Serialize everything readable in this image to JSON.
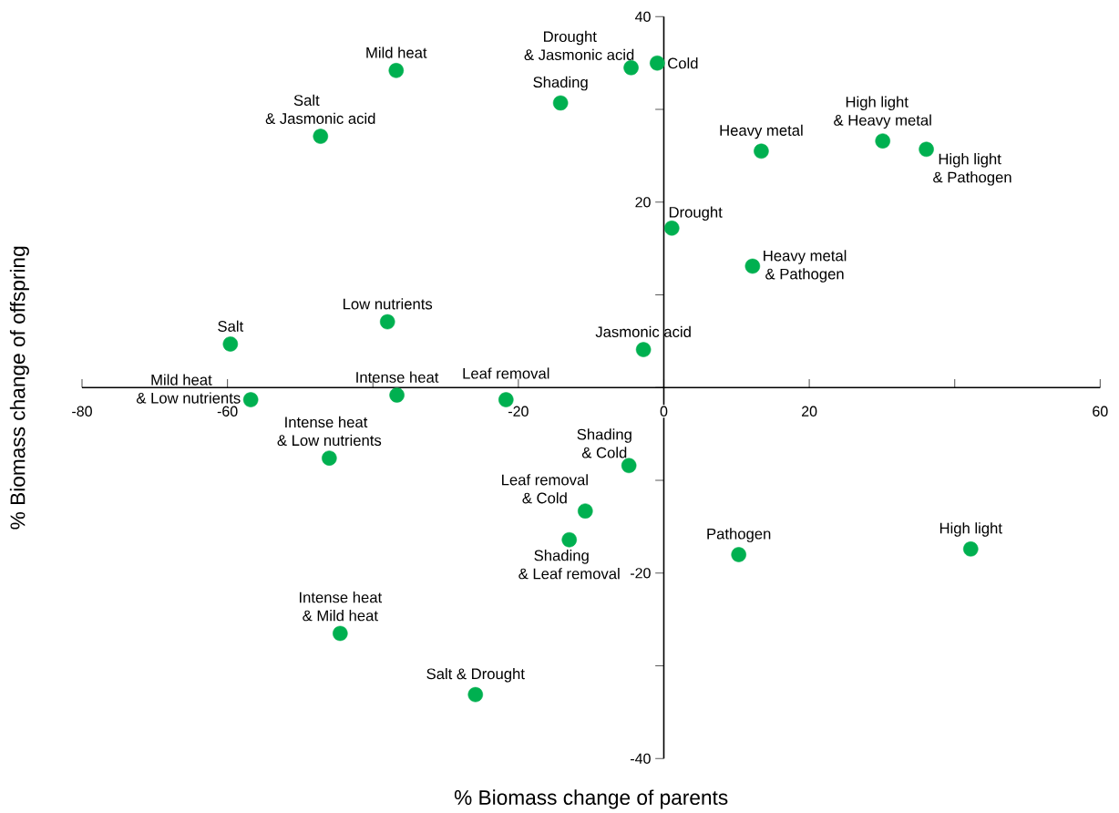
{
  "chart_data": {
    "type": "scatter",
    "xlabel": "% Biomass change of parents",
    "ylabel": "% Biomass change of offspring",
    "x": [
      -36.8,
      -47.2,
      -4.5,
      -0.9,
      -14.2,
      13.4,
      30.1,
      36.1,
      1.1,
      12.2,
      -38.0,
      -59.6,
      -2.8,
      -56.8,
      -36.7,
      -21.7,
      -46.0,
      -4.8,
      -10.8,
      -13.0,
      10.3,
      42.2,
      -44.5,
      -25.9
    ],
    "values": [
      34.2,
      27.1,
      34.5,
      35.0,
      30.7,
      25.5,
      26.6,
      25.7,
      17.2,
      13.1,
      7.1,
      4.7,
      4.1,
      -1.3,
      -0.8,
      -1.3,
      -7.6,
      -8.4,
      -13.3,
      -16.4,
      -18.0,
      -17.4,
      -26.5,
      -33.1
    ],
    "color": "#00b050",
    "marker": "circle",
    "grid": false,
    "xlim": [
      -80,
      60
    ],
    "ylim": [
      -40,
      40
    ],
    "xticks": [
      -80,
      -60,
      {
        "value": -40,
        "label": null
      },
      -20,
      0,
      20,
      {
        "value": 40,
        "label": null
      },
      60
    ],
    "yticks": [
      -40,
      {
        "value": -30,
        "label": null
      },
      -20,
      {
        "value": -10,
        "label": null
      },
      {
        "value": 0,
        "label": null
      },
      {
        "value": 10,
        "label": null
      },
      20,
      {
        "value": 30,
        "label": null
      },
      40
    ],
    "annotations": [
      {
        "text": "Mild heat",
        "x": -36.8,
        "y": 34.2
      },
      {
        "text": "Salt & Jasmonic acid",
        "x": -47.2,
        "y": 27.1
      },
      {
        "text": "Drought & Jasmonic acid",
        "x": -4.5,
        "y": 34.5
      },
      {
        "text": "Cold",
        "x": -0.9,
        "y": 35.0
      },
      {
        "text": "Shading",
        "x": -14.2,
        "y": 30.7
      },
      {
        "text": "Heavy metal",
        "x": 13.4,
        "y": 25.5
      },
      {
        "text": "High light & Heavy metal",
        "x": 30.1,
        "y": 26.6
      },
      {
        "text": "High light & Pathogen",
        "x": 36.1,
        "y": 25.7
      },
      {
        "text": "Drought",
        "x": 1.1,
        "y": 17.2
      },
      {
        "text": "Heavy metal & Pathogen",
        "x": 12.2,
        "y": 13.1
      },
      {
        "text": "Low nutrients",
        "x": -38.0,
        "y": 7.1
      },
      {
        "text": "Salt",
        "x": -59.6,
        "y": 4.7
      },
      {
        "text": "Jasmonic acid",
        "x": -2.8,
        "y": 4.1
      },
      {
        "text": "Mild heat & Low nutrients",
        "x": -56.8,
        "y": -1.3
      },
      {
        "text": "Intense heat",
        "x": -36.7,
        "y": -0.8
      },
      {
        "text": "Leaf removal",
        "x": -21.7,
        "y": -1.3
      },
      {
        "text": "Intense heat & Low nutrients",
        "x": -46.0,
        "y": -7.6
      },
      {
        "text": "Shading & Cold",
        "x": -4.8,
        "y": -8.4
      },
      {
        "text": "Leaf removal & Cold",
        "x": -10.8,
        "y": -13.3
      },
      {
        "text": "Shading & Leaf removal",
        "x": -13.0,
        "y": -16.4
      },
      {
        "text": "Pathogen",
        "x": 10.3,
        "y": -18.0
      },
      {
        "text": "High light",
        "x": 42.2,
        "y": -17.4
      },
      {
        "text": "Intense heat & Mild heat",
        "x": -44.5,
        "y": -26.5
      },
      {
        "text": "Salt & Drought",
        "x": -25.9,
        "y": -33.1
      }
    ]
  }
}
